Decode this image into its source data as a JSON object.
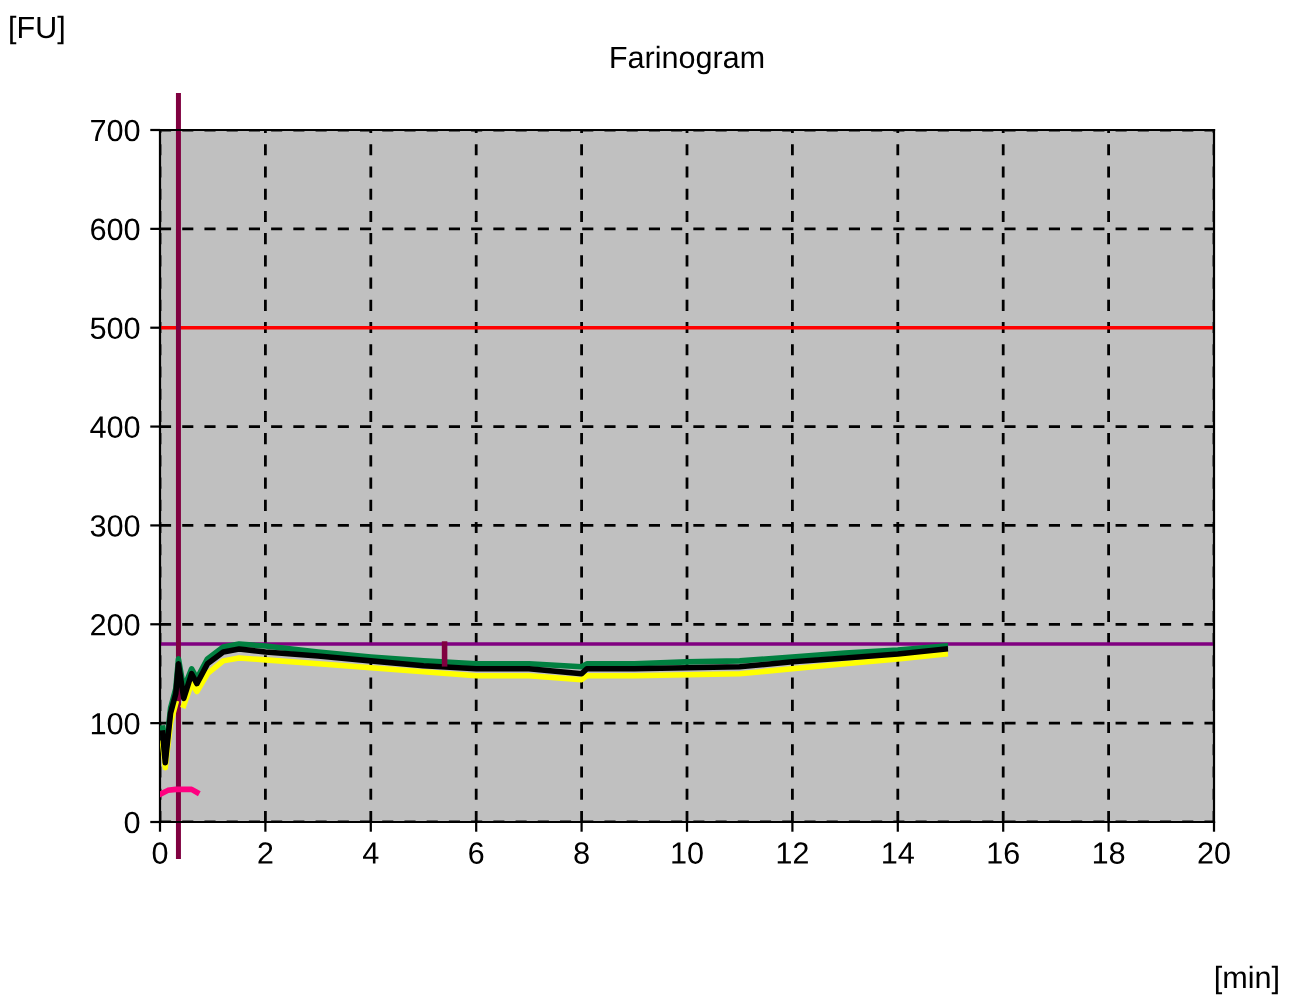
{
  "chart_data": {
    "type": "line",
    "title": "Farinogram",
    "xlabel": "[min]",
    "ylabel": "[FU]",
    "xlim": [
      0,
      20
    ],
    "ylim": [
      0,
      700
    ],
    "xticks": [
      0,
      2,
      4,
      6,
      8,
      10,
      12,
      14,
      16,
      18,
      20
    ],
    "yticks": [
      0,
      100,
      200,
      300,
      400,
      500,
      600,
      700
    ],
    "grid": true,
    "line_style": "solid",
    "marker": "none",
    "series": [
      {
        "color": "#ffff00",
        "x": [
          0.05,
          0.1,
          0.2,
          0.3,
          0.35,
          0.45,
          0.6,
          0.7,
          0.9,
          1.2,
          1.5,
          2,
          3,
          4,
          5,
          6,
          7,
          8,
          8.1,
          9,
          10,
          11,
          12,
          13,
          14,
          14.9
        ],
        "values": [
          80,
          55,
          100,
          120,
          null,
          118,
          140,
          132,
          150,
          163,
          166,
          164,
          160,
          156,
          152,
          148,
          148,
          144,
          148,
          148,
          149,
          150,
          155,
          160,
          165,
          170
        ]
      },
      {
        "color": "#008040",
        "x": [
          0.05,
          0.1,
          0.2,
          0.3,
          0.35,
          0.45,
          0.6,
          0.7,
          0.9,
          1.2,
          1.5,
          2,
          3,
          4,
          5,
          6,
          7,
          8,
          8.1,
          9,
          10,
          11,
          12,
          13,
          14,
          14.9
        ],
        "values": [
          95,
          65,
          115,
          135,
          165,
          135,
          155,
          145,
          165,
          177,
          180,
          178,
          172,
          167,
          163,
          160,
          160,
          157,
          160,
          160,
          162,
          163,
          167,
          171,
          174,
          178
        ]
      },
      {
        "color": "#000000",
        "x": [
          0.05,
          0.1,
          0.2,
          0.3,
          0.35,
          0.45,
          0.6,
          0.7,
          0.9,
          1.2,
          1.5,
          2,
          3,
          4,
          5,
          6,
          7,
          8,
          8.1,
          9,
          10,
          11,
          12,
          13,
          14,
          14.9
        ],
        "values": [
          90,
          60,
          110,
          130,
          160,
          125,
          150,
          140,
          160,
          172,
          175,
          172,
          168,
          163,
          158,
          155,
          155,
          150,
          155,
          155,
          156,
          157,
          162,
          166,
          170,
          175
        ]
      },
      {
        "color": "#ff0080",
        "x": [
          0.0,
          0.15,
          0.3,
          0.6,
          0.7
        ],
        "values": [
          28,
          32,
          33,
          33,
          30
        ]
      },
      {
        "color": "#800040",
        "x": [
          5.4,
          5.4
        ],
        "values": [
          180,
          160
        ]
      }
    ],
    "ref_lines": [
      {
        "axis": "y",
        "value": 500,
        "color": "#ff0000"
      },
      {
        "axis": "y",
        "value": 180,
        "color": "#800080"
      },
      {
        "axis": "x",
        "value": 0.35,
        "color": "#800040"
      }
    ]
  }
}
